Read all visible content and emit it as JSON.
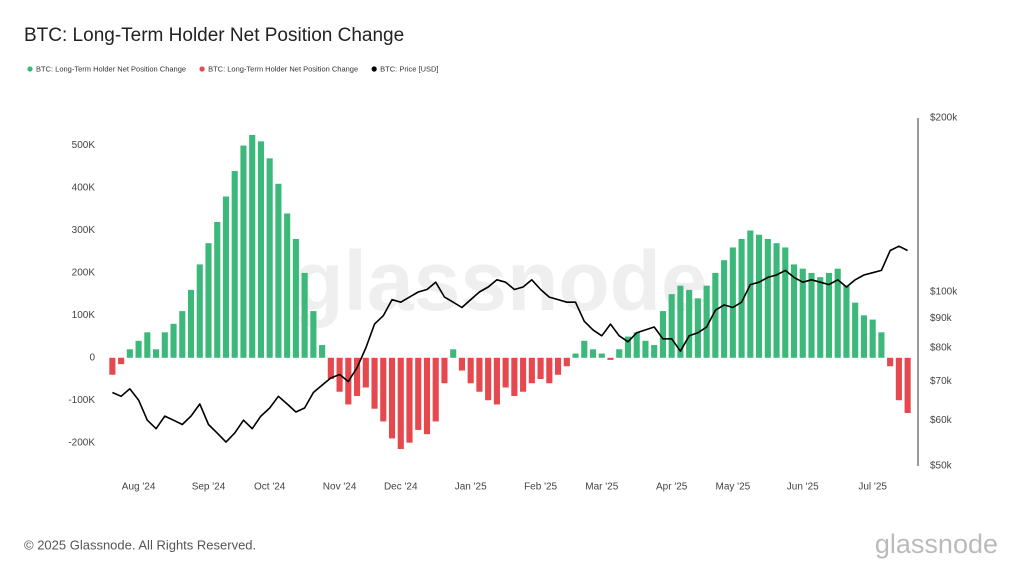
{
  "chart_data": {
    "type": "combo",
    "title": "BTC: Long-Term Holder Net Position Change",
    "footer": "© 2025 Glassnode. All Rights Reserved.",
    "watermark": "glassnode",
    "logo": "glassnode",
    "categories": [
      null,
      null,
      null,
      "Aug '24",
      null,
      null,
      null,
      null,
      null,
      null,
      null,
      "Sep '24",
      null,
      null,
      null,
      null,
      null,
      null,
      "Oct '24",
      null,
      null,
      null,
      null,
      null,
      null,
      null,
      "Nov '24",
      null,
      null,
      null,
      null,
      null,
      null,
      "Dec '24",
      null,
      null,
      null,
      null,
      null,
      null,
      null,
      "Jan '25",
      null,
      null,
      null,
      null,
      null,
      null,
      null,
      "Feb '25",
      null,
      null,
      null,
      null,
      null,
      null,
      "Mar '25",
      null,
      null,
      null,
      null,
      null,
      null,
      null,
      "Apr '25",
      null,
      null,
      null,
      null,
      null,
      null,
      "May '25",
      null,
      null,
      null,
      null,
      null,
      null,
      null,
      "Jun '25",
      null,
      null,
      null,
      null,
      null,
      null,
      null,
      "Jul '25",
      null,
      null,
      null,
      null
    ],
    "series": [
      {
        "name": "BTC: Long-Term Holder Net Position Change",
        "type": "bar",
        "color": "#3cb97a",
        "values": [
          null,
          null,
          20000,
          40000,
          60000,
          20000,
          60000,
          80000,
          110000,
          160000,
          220000,
          270000,
          320000,
          380000,
          440000,
          500000,
          525000,
          510000,
          470000,
          410000,
          340000,
          280000,
          200000,
          110000,
          30000,
          null,
          null,
          null,
          null,
          null,
          null,
          null,
          null,
          null,
          null,
          null,
          null,
          null,
          null,
          20000,
          null,
          null,
          null,
          null,
          null,
          null,
          null,
          null,
          null,
          null,
          null,
          null,
          null,
          10000,
          40000,
          20000,
          10000,
          null,
          20000,
          50000,
          60000,
          40000,
          30000,
          110000,
          150000,
          170000,
          160000,
          140000,
          170000,
          200000,
          230000,
          260000,
          280000,
          300000,
          290000,
          280000,
          270000,
          260000,
          220000,
          210000,
          200000,
          190000,
          200000,
          210000,
          170000,
          130000,
          100000,
          90000,
          60000,
          null,
          null,
          null
        ]
      },
      {
        "name": "BTC: Long-Term Holder Net Position Change",
        "type": "bar",
        "color": "#e5484d",
        "values": [
          -40000,
          -15000,
          null,
          null,
          null,
          null,
          null,
          null,
          null,
          null,
          null,
          null,
          null,
          null,
          null,
          null,
          null,
          null,
          null,
          null,
          null,
          null,
          null,
          null,
          null,
          -50000,
          -80000,
          -110000,
          -90000,
          -70000,
          -120000,
          -150000,
          -190000,
          -215000,
          -200000,
          -170000,
          -180000,
          -150000,
          -60000,
          null,
          -30000,
          -60000,
          -80000,
          -100000,
          -110000,
          -70000,
          -90000,
          -80000,
          -60000,
          -50000,
          -60000,
          -40000,
          -20000,
          null,
          null,
          null,
          null,
          -5000,
          null,
          null,
          null,
          null,
          null,
          null,
          null,
          null,
          null,
          null,
          null,
          null,
          null,
          null,
          null,
          null,
          null,
          null,
          null,
          null,
          null,
          null,
          null,
          null,
          null,
          null,
          null,
          null,
          null,
          null,
          null,
          -20000,
          -100000,
          -130000
        ]
      },
      {
        "name": "BTC: Price [USD]",
        "type": "line",
        "axis": "y2",
        "color": "#000000",
        "values": [
          67000,
          66000,
          68000,
          65000,
          60000,
          58000,
          61000,
          60000,
          59000,
          61000,
          64000,
          59000,
          57000,
          55000,
          57000,
          60000,
          58000,
          61000,
          63000,
          66000,
          64000,
          62000,
          63000,
          67000,
          69000,
          71000,
          72000,
          70000,
          74000,
          80000,
          88000,
          91000,
          97000,
          96000,
          98000,
          100000,
          101000,
          104000,
          98000,
          96000,
          94000,
          97000,
          100000,
          102000,
          105000,
          104000,
          101000,
          102000,
          105000,
          101000,
          98000,
          97000,
          96000,
          96000,
          89000,
          86000,
          84000,
          88000,
          84000,
          82000,
          85000,
          86000,
          87000,
          83000,
          83000,
          79000,
          84000,
          85000,
          87000,
          93000,
          95000,
          94000,
          96000,
          103000,
          104000,
          106000,
          107000,
          109000,
          106000,
          104000,
          105000,
          104000,
          103000,
          105000,
          102000,
          105000,
          107000,
          108000,
          109000,
          118000,
          120000,
          118000
        ]
      }
    ],
    "ylim": [
      -255000,
      565000
    ],
    "yticks": [
      {
        "value": -200000,
        "label": "-200K"
      },
      {
        "value": -100000,
        "label": "-100K"
      },
      0,
      {
        "value": 100000,
        "label": "100K"
      },
      {
        "value": 200000,
        "label": "200K"
      },
      {
        "value": 300000,
        "label": "300K"
      },
      {
        "value": 400000,
        "label": "400K"
      },
      {
        "value": 500000,
        "label": "500K"
      }
    ],
    "y2lim": [
      50000,
      200000
    ],
    "y2log": true,
    "y2ticks": [
      {
        "value": 50000,
        "label": "$50k"
      },
      {
        "value": 60000,
        "label": "$60k"
      },
      {
        "value": 70000,
        "label": "$70k"
      },
      {
        "value": 80000,
        "label": "$80k"
      },
      {
        "value": 90000,
        "label": "$90k"
      },
      {
        "value": 100000,
        "label": "$100k"
      },
      {
        "value": 200000,
        "label": "$200k"
      }
    ],
    "legend": "top-left"
  }
}
